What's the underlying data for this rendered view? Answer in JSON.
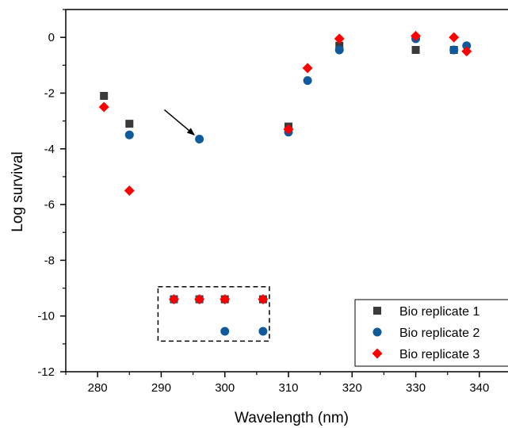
{
  "chart_data": {
    "type": "scatter",
    "title": "",
    "xlabel": "Wavelength (nm)",
    "ylabel": "Log survival",
    "xlim": [
      275,
      345
    ],
    "ylim": [
      -12,
      1
    ],
    "x_ticks": [
      280,
      290,
      300,
      310,
      320,
      330,
      340
    ],
    "y_ticks": [
      0,
      -2,
      -4,
      -6,
      -8,
      -10,
      -12
    ],
    "grid": false,
    "legend_position": "bottom-right",
    "series": [
      {
        "name": "Bio replicate 1",
        "marker": "square",
        "color": "#3a3a3a",
        "points": [
          {
            "x": 281,
            "y": -2.1
          },
          {
            "x": 285,
            "y": -3.1
          },
          {
            "x": 292,
            "y": -9.4
          },
          {
            "x": 296,
            "y": -9.4
          },
          {
            "x": 300,
            "y": -9.4
          },
          {
            "x": 306,
            "y": -9.4
          },
          {
            "x": 310,
            "y": -3.2
          },
          {
            "x": 318,
            "y": -0.3
          },
          {
            "x": 330,
            "y": -0.45
          },
          {
            "x": 336,
            "y": -0.45
          }
        ]
      },
      {
        "name": "Bio replicate 2",
        "marker": "circle",
        "color": "#0e5a9c",
        "points": [
          {
            "x": 285,
            "y": -3.5
          },
          {
            "x": 296,
            "y": -3.65
          },
          {
            "x": 292,
            "y": -9.4
          },
          {
            "x": 296,
            "y": -9.4
          },
          {
            "x": 300,
            "y": -10.55
          },
          {
            "x": 306,
            "y": -10.55
          },
          {
            "x": 310,
            "y": -3.4
          },
          {
            "x": 313,
            "y": -1.55
          },
          {
            "x": 318,
            "y": -0.45
          },
          {
            "x": 330,
            "y": -0.05
          },
          {
            "x": 336,
            "y": -0.45
          },
          {
            "x": 338,
            "y": -0.3
          }
        ]
      },
      {
        "name": "Bio replicate 3",
        "marker": "diamond",
        "color": "#ff0000",
        "points": [
          {
            "x": 281,
            "y": -2.5
          },
          {
            "x": 285,
            "y": -5.5
          },
          {
            "x": 292,
            "y": -9.4
          },
          {
            "x": 296,
            "y": -9.4
          },
          {
            "x": 300,
            "y": -9.4
          },
          {
            "x": 306,
            "y": -9.4
          },
          {
            "x": 310,
            "y": -3.3
          },
          {
            "x": 313,
            "y": -1.1
          },
          {
            "x": 318,
            "y": -0.05
          },
          {
            "x": 330,
            "y": 0.05
          },
          {
            "x": 336,
            "y": 0.0
          },
          {
            "x": 338,
            "y": -0.5
          }
        ]
      }
    ],
    "annotations": [
      {
        "type": "arrow",
        "from": {
          "x": 290.5,
          "y": -2.6
        },
        "to": {
          "x": 295.2,
          "y": -3.5
        }
      },
      {
        "type": "dashed-box",
        "x_range": [
          289.5,
          307
        ],
        "y_range": [
          -10.9,
          -8.95
        ]
      }
    ]
  }
}
